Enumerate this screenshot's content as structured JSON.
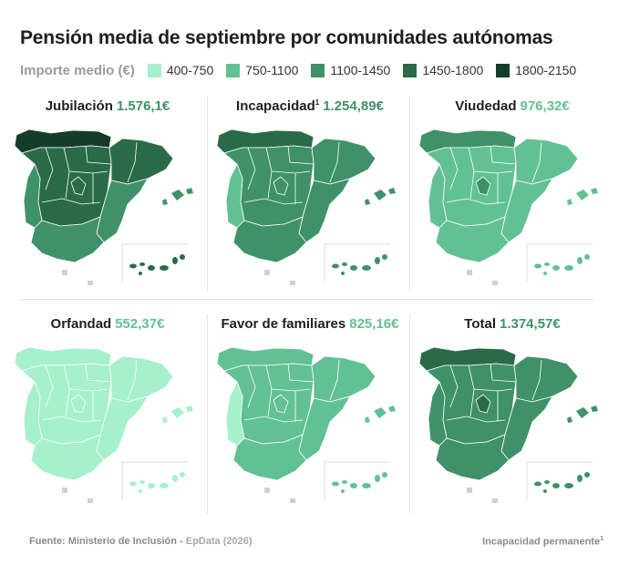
{
  "title": "Pensión media de septiembre por comunidades autónomas",
  "legend": {
    "label": "Importe medio (€)",
    "items": [
      {
        "label": "400-750",
        "color": "#a6f0cb"
      },
      {
        "label": "750-1100",
        "color": "#62c194"
      },
      {
        "label": "1100-1450",
        "color": "#3f9168"
      },
      {
        "label": "1450-1800",
        "color": "#2a6b47"
      },
      {
        "label": "1800-2150",
        "color": "#143d29"
      }
    ]
  },
  "chart_data": {
    "type": "choropleth",
    "unit": "€",
    "panels": [
      {
        "name": "Jubilación",
        "sup": "",
        "value": "1.576,1€",
        "value_color": "#3f9168",
        "fill": {
          "main": "#2a6b47",
          "east": "#2a6b47",
          "southeast": "#3f9168",
          "west": "#3f9168",
          "south": "#3f9168",
          "north": "#143d29",
          "islands": "#3f9168",
          "canary": "#2a6b47",
          "madrid": "#2a6b47"
        }
      },
      {
        "name": "Incapacidad",
        "sup": "1",
        "value": "1.254,89€",
        "value_color": "#3f9168",
        "fill": {
          "main": "#3f9168",
          "east": "#3f9168",
          "southeast": "#3f9168",
          "west": "#62c194",
          "south": "#3f9168",
          "north": "#2a6b47",
          "islands": "#3f9168",
          "canary": "#3f9168",
          "madrid": "#3f9168"
        }
      },
      {
        "name": "Viudedad",
        "sup": "",
        "value": "976,32€",
        "value_color": "#62c194",
        "fill": {
          "main": "#62c194",
          "east": "#62c194",
          "southeast": "#62c194",
          "west": "#62c194",
          "south": "#62c194",
          "north": "#3f9168",
          "islands": "#62c194",
          "canary": "#62c194",
          "madrid": "#3f9168"
        }
      },
      {
        "name": "Orfandad",
        "sup": "",
        "value": "552,37€",
        "value_color": "#62c194",
        "fill": {
          "main": "#a6f0cb",
          "east": "#a6f0cb",
          "southeast": "#a6f0cb",
          "west": "#a6f0cb",
          "south": "#a6f0cb",
          "north": "#a6f0cb",
          "islands": "#a6f0cb",
          "canary": "#a6f0cb",
          "madrid": "#a6f0cb"
        }
      },
      {
        "name": "Favor de familiares",
        "sup": "",
        "value": "825,16€",
        "value_color": "#62c194",
        "fill": {
          "main": "#62c194",
          "east": "#62c194",
          "southeast": "#62c194",
          "west": "#a6f0cb",
          "south": "#62c194",
          "north": "#62c194",
          "islands": "#62c194",
          "canary": "#62c194",
          "madrid": "#62c194"
        }
      },
      {
        "name": "Total",
        "sup": "",
        "value": "1.374,57€",
        "value_color": "#3f9168",
        "fill": {
          "main": "#3f9168",
          "east": "#3f9168",
          "southeast": "#3f9168",
          "west": "#3f9168",
          "south": "#3f9168",
          "north": "#2a6b47",
          "islands": "#3f9168",
          "canary": "#3f9168",
          "madrid": "#2a6b47"
        }
      }
    ]
  },
  "source": {
    "text": "Fuente: Ministerio de Inclusión - ",
    "org": "EpData (2026)"
  },
  "note": {
    "text": "Incapacidad permanente",
    "sup": "1"
  }
}
